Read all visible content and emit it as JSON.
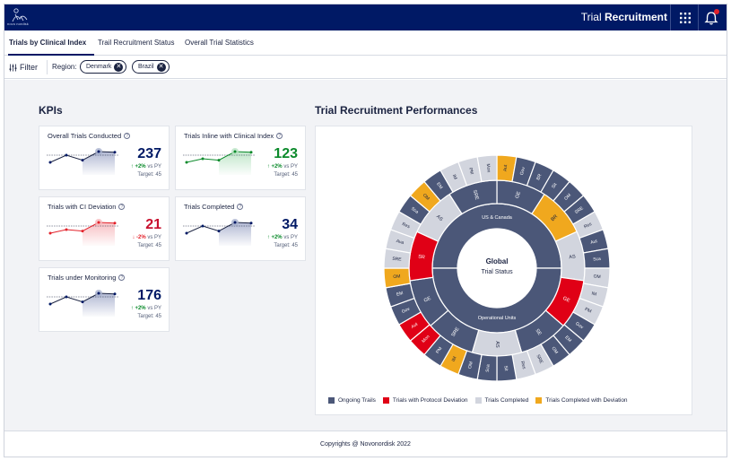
{
  "header": {
    "logo_text": "novo nordisk",
    "app_title_light": "Trial",
    "app_title_bold": "Recruitment"
  },
  "tabs": [
    {
      "label": "Trials by Clinical Index",
      "active": true
    },
    {
      "label": "Trail Recruitment Status",
      "active": false
    },
    {
      "label": "Overall Trial Statistics",
      "active": false
    }
  ],
  "filter": {
    "button_label": "Filter",
    "region_label": "Region:",
    "chips": [
      "Denmark",
      "Brazil"
    ]
  },
  "kpis": {
    "title": "KPIs",
    "cards": [
      {
        "title": "Overall Trials Conducted",
        "value": "237",
        "value_color": "#001965",
        "delta": "+2% vs PY",
        "delta_dir": "up",
        "target": "Target: 45",
        "line_color": "#1b2341",
        "fill_color": "#a9b1ce",
        "accent_color": "#001965",
        "points": [
          3,
          5,
          3.6,
          6,
          5.8
        ]
      },
      {
        "title": "Trials Inline with Clinical Index",
        "value": "123",
        "value_color": "#0b8a2b",
        "delta": "+2% vs PY",
        "delta_dir": "up",
        "target": "Target: 45",
        "line_color": "#0b8a2b",
        "fill_color": "#b9e3c4",
        "accent_color": "#0b8a2b",
        "points": [
          3,
          4,
          3.6,
          6,
          5.8
        ]
      },
      {
        "title": "Trials with CI Deviation",
        "value": "21",
        "value_color": "#c8102e",
        "delta": "-2% vs PY",
        "delta_dir": "down",
        "target": "Target: 45",
        "line_color": "#e3222b",
        "fill_color": "#f6b8bc",
        "accent_color": "#e3222b",
        "points": [
          3,
          4,
          3.6,
          6,
          5.8
        ]
      },
      {
        "title": "Trials Completed",
        "value": "34",
        "value_color": "#001965",
        "delta": "+2% vs PY",
        "delta_dir": "up",
        "target": "Target: 45",
        "line_color": "#1b2341",
        "fill_color": "#a9b1ce",
        "accent_color": "#001965",
        "points": [
          3,
          5,
          3.6,
          6,
          5.8
        ]
      },
      {
        "title": "Trials under Monitoring",
        "value": "176",
        "value_color": "#001965",
        "delta": "+2% vs PY",
        "delta_dir": "up",
        "target": "Target: 45",
        "line_color": "#1b2341",
        "fill_color": "#a9b1ce",
        "accent_color": "#001965",
        "points": [
          3,
          5,
          3.6,
          6,
          5.8
        ]
      }
    ]
  },
  "performance": {
    "title": "Trial Recruitment Performances",
    "center_title": "Global",
    "center_subtitle": "Trial Status",
    "legend": [
      {
        "label": "Ongoing Trails",
        "color": "#4b5778"
      },
      {
        "label": "Trials with Protocol Deviation",
        "color": "#e00016"
      },
      {
        "label": "Trials Completed",
        "color": "#d2d5de"
      },
      {
        "label": "Trials Completed with Deviation",
        "color": "#f0a81e"
      }
    ],
    "colors": {
      "ongoing": "#4b5778",
      "deviation": "#e00016",
      "completed": "#d2d5de",
      "completed_dev": "#f0a81e"
    }
  },
  "chart_data": {
    "type": "sunburst",
    "center": "Global Trial Status",
    "ring1": [
      {
        "label": "US & Canada",
        "status": "ongoing"
      },
      {
        "label": "Operational Units",
        "status": "ongoing"
      }
    ],
    "ring2": [
      {
        "label": "GE",
        "status": "ongoing"
      },
      {
        "label": "BR",
        "status": "completed_dev"
      },
      {
        "label": "AS",
        "status": "completed"
      },
      {
        "label": "GE",
        "status": "deviation"
      },
      {
        "label": "SE",
        "status": "ongoing"
      },
      {
        "label": "AS",
        "status": "completed"
      },
      {
        "label": "SRE",
        "status": "ongoing"
      },
      {
        "label": "GE",
        "status": "ongoing"
      },
      {
        "label": "SR",
        "status": "deviation"
      },
      {
        "label": "AS",
        "status": "completed"
      },
      {
        "label": "SRE",
        "status": "ongoing"
      }
    ],
    "ring3": [
      {
        "label": "Aut",
        "status": "completed_dev"
      },
      {
        "label": "Gov",
        "status": "ongoing"
      },
      {
        "label": "BR",
        "status": "ongoing"
      },
      {
        "label": "Sit",
        "status": "ongoing"
      },
      {
        "label": "OM",
        "status": "ongoing"
      },
      {
        "label": "SRE",
        "status": "ongoing"
      },
      {
        "label": "Res",
        "status": "completed"
      },
      {
        "label": "Aut",
        "status": "ongoing"
      },
      {
        "label": "Sca",
        "status": "ongoing"
      },
      {
        "label": "OM",
        "status": "completed"
      },
      {
        "label": "IM",
        "status": "completed"
      },
      {
        "label": "PM",
        "status": "completed"
      },
      {
        "label": "Gov",
        "status": "ongoing"
      },
      {
        "label": "EM",
        "status": "ongoing"
      },
      {
        "label": "OM",
        "status": "ongoing"
      },
      {
        "label": "SRE",
        "status": "completed"
      },
      {
        "label": "Res",
        "status": "completed"
      },
      {
        "label": "Sit",
        "status": "ongoing"
      },
      {
        "label": "Sca",
        "status": "ongoing"
      },
      {
        "label": "OM",
        "status": "ongoing"
      },
      {
        "label": "IM",
        "status": "completed_dev"
      },
      {
        "label": "PM",
        "status": "ongoing"
      },
      {
        "label": "Mon",
        "status": "deviation"
      },
      {
        "label": "Aut",
        "status": "deviation"
      },
      {
        "label": "Gov",
        "status": "ongoing"
      },
      {
        "label": "EM",
        "status": "ongoing"
      },
      {
        "label": "OM",
        "status": "completed_dev"
      },
      {
        "label": "SRE",
        "status": "completed"
      },
      {
        "label": "Ava",
        "status": "completed"
      },
      {
        "label": "Res",
        "status": "completed"
      },
      {
        "label": "Sca",
        "status": "ongoing"
      },
      {
        "label": "OM",
        "status": "completed_dev"
      },
      {
        "label": "EM",
        "status": "ongoing"
      },
      {
        "label": "IM",
        "status": "completed"
      },
      {
        "label": "PM",
        "status": "completed"
      },
      {
        "label": "Mon",
        "status": "completed"
      }
    ]
  },
  "footer": {
    "text": "Copyrights @ Novonordisk 2022"
  }
}
